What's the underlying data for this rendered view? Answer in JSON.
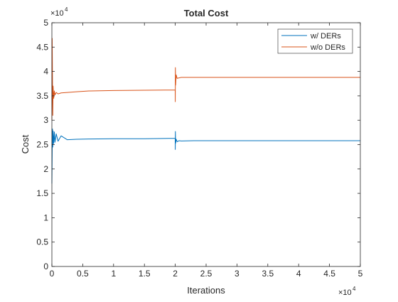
{
  "chart_data": {
    "type": "line",
    "title": "Total Cost",
    "xlabel": "Iterations",
    "ylabel": "Cost",
    "xlim": [
      0,
      50000
    ],
    "ylim": [
      0,
      50000
    ],
    "x_multiplier_label": "×10^4",
    "y_multiplier_label": "×10^4",
    "x_ticks": [
      0,
      5000,
      10000,
      15000,
      20000,
      25000,
      30000,
      35000,
      40000,
      45000,
      50000
    ],
    "x_tick_labels": [
      "0",
      "0.5",
      "1",
      "1.5",
      "2",
      "2.5",
      "3",
      "3.5",
      "4",
      "4.5",
      "5"
    ],
    "y_ticks": [
      0,
      5000,
      10000,
      15000,
      20000,
      25000,
      30000,
      35000,
      40000,
      45000,
      50000
    ],
    "y_tick_labels": [
      "0",
      "0.5",
      "1",
      "1.5",
      "2",
      "2.5",
      "3",
      "3.5",
      "4",
      "4.5",
      "5"
    ],
    "grid": false,
    "legend_position": "top-right",
    "series": [
      {
        "name": "w/ DERs",
        "color": "#0072BD",
        "x": [
          0,
          50,
          100,
          150,
          200,
          300,
          400,
          500,
          700,
          1000,
          1500,
          2500,
          4000,
          6000,
          10000,
          15000,
          19990,
          20000,
          20020,
          20060,
          20150,
          20300,
          20600,
          21000,
          23000,
          30000,
          40000,
          50000
        ],
        "y": [
          17000,
          23500,
          28200,
          24500,
          27800,
          25200,
          27600,
          25500,
          27200,
          25700,
          26800,
          26000,
          26100,
          26150,
          26200,
          26200,
          26300,
          24000,
          27700,
          25300,
          26100,
          25600,
          25800,
          25750,
          25800,
          25800,
          25800,
          25800
        ]
      },
      {
        "name": "w/o DERs",
        "color": "#D95319",
        "x": [
          0,
          50,
          100,
          150,
          200,
          300,
          400,
          500,
          700,
          1000,
          1500,
          2500,
          4000,
          6000,
          10000,
          15000,
          19990,
          20000,
          20020,
          20060,
          20150,
          20300,
          21000,
          25000,
          35000,
          50000
        ],
        "y": [
          30000,
          46800,
          38000,
          31000,
          37000,
          34500,
          36000,
          35200,
          35700,
          35400,
          35600,
          35700,
          35850,
          36000,
          36100,
          36150,
          36200,
          33800,
          40800,
          37200,
          39300,
          38600,
          38800,
          38800,
          38800,
          38800
        ]
      }
    ]
  },
  "legend": {
    "entries": [
      "w/ DERs",
      "w/o DERs"
    ]
  }
}
